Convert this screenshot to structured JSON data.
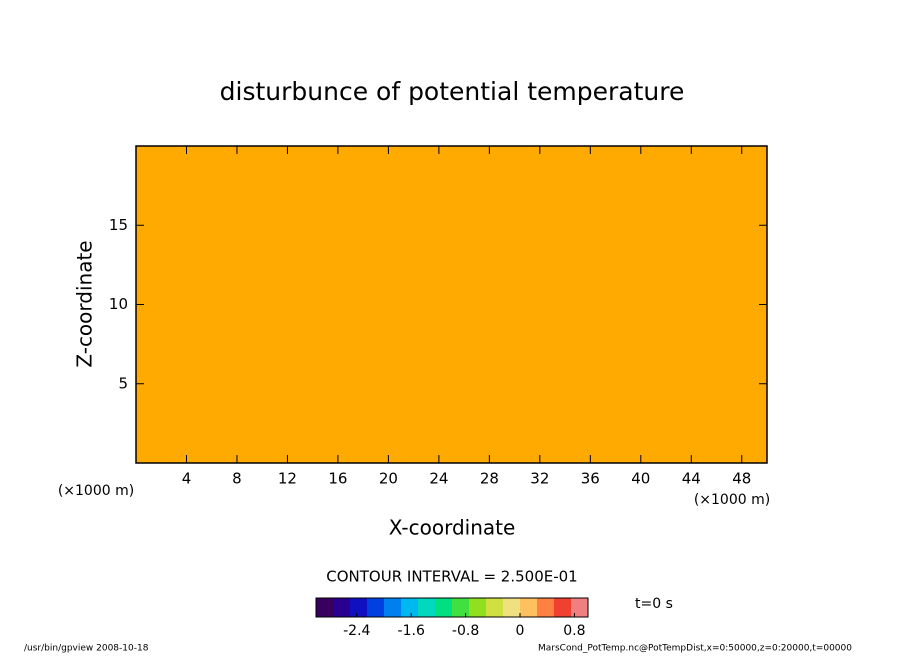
{
  "chart_data": {
    "type": "heatmap",
    "title": "disturbunce of potential temperature",
    "x_label": "X-coordinate",
    "y_label": "Z-coordinate",
    "x_unit": "(×1000 m)",
    "y_unit": "(×1000 m)",
    "xlim": [
      0,
      50
    ],
    "xticks": [
      4,
      8,
      12,
      16,
      20,
      24,
      28,
      32,
      36,
      40,
      44,
      48
    ],
    "ylim": [
      0,
      20
    ],
    "yticks": [
      5,
      10,
      15
    ],
    "fill_color": "#ffaa00",
    "contour_interval": "CONTOUR INTERVAL = 2.500E-01",
    "time_label": "t=0 s",
    "colorbar": {
      "lim": [
        -3,
        1
      ],
      "ticks": [
        -2.4,
        -1.6,
        -0.8,
        0,
        0.8
      ],
      "colors": [
        "#3a0060",
        "#2a0090",
        "#1010c0",
        "#0040e0",
        "#0080f0",
        "#00b8f0",
        "#00d8c0",
        "#00e080",
        "#40e040",
        "#90e020",
        "#d0e040",
        "#f0e080",
        "#ffc060",
        "#ff8040",
        "#f04030",
        "#f08080"
      ]
    },
    "footer_left": "/usr/bin/gpview   2008-10-18",
    "footer_right": "MarsCond_PotTemp.nc@PotTempDist,x=0:50000,z=0:20000,t=00000"
  }
}
